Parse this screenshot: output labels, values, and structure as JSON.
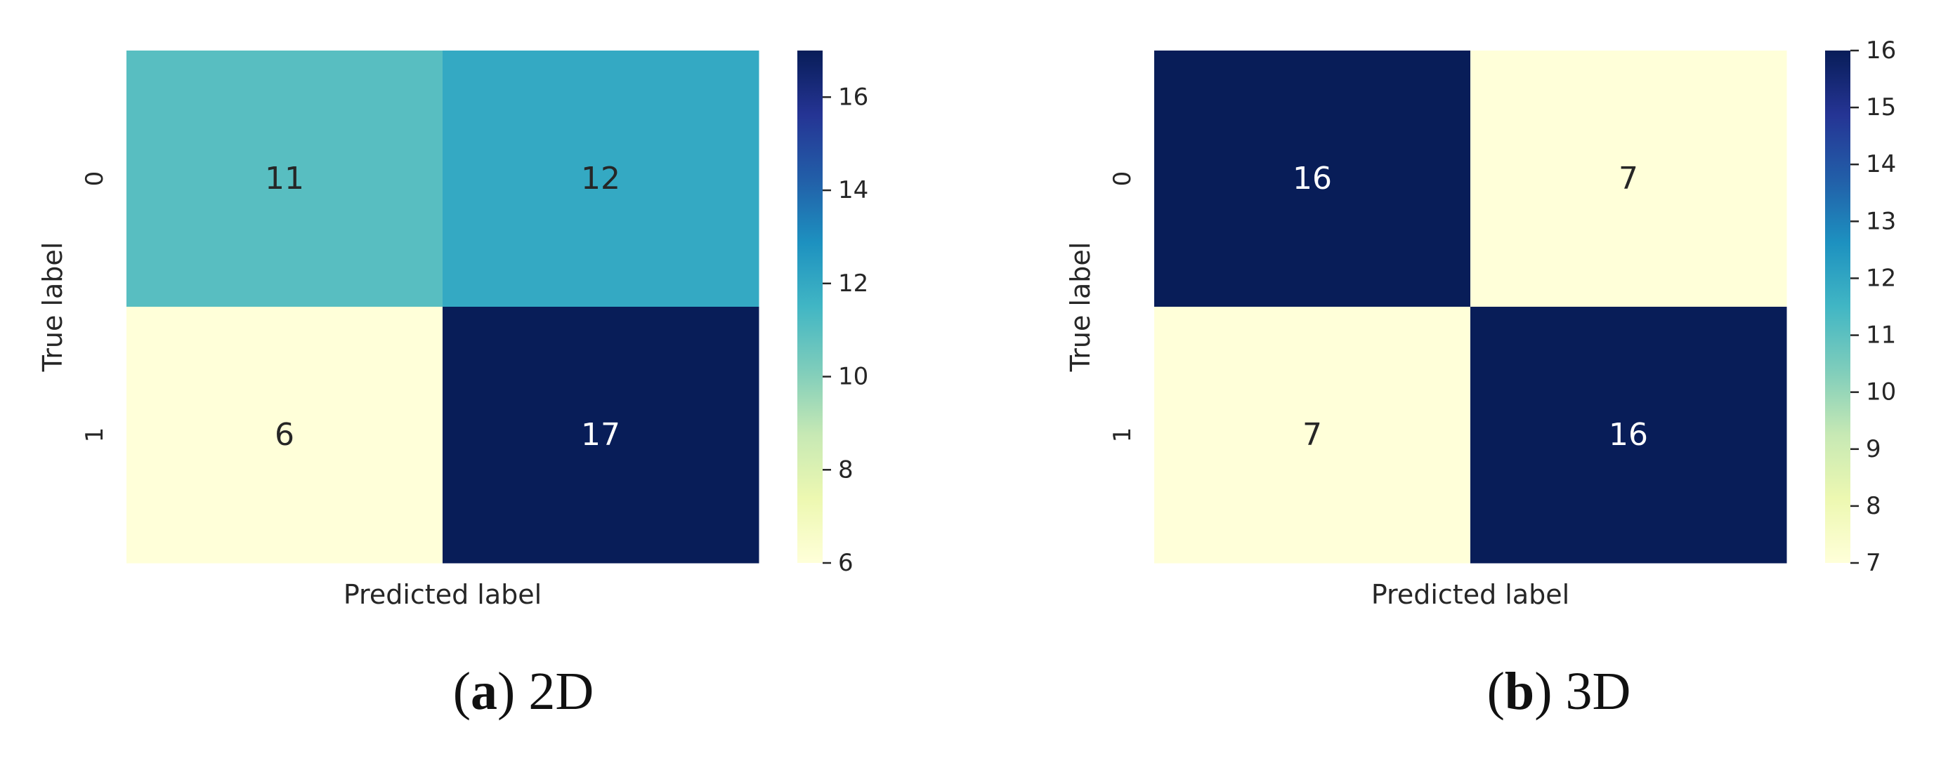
{
  "figure": {
    "captions": [
      {
        "open": "(",
        "letter": "a",
        "close": ")",
        "text": " 2D"
      },
      {
        "open": "(",
        "letter": "b",
        "close": ")",
        "text": " 3D"
      }
    ]
  },
  "chart_data": [
    {
      "type": "heatmap",
      "title": "",
      "xlabel": "Predicted label",
      "ylabel": "True label",
      "x_categories": [],
      "y_categories": [
        "0",
        "1"
      ],
      "values": [
        [
          11,
          12
        ],
        [
          6,
          17
        ]
      ],
      "colormap": "YlGnBu",
      "colorbar": {
        "range": [
          6,
          17
        ],
        "ticks": [
          6,
          8,
          10,
          12,
          14,
          16
        ]
      },
      "text_colors": {
        "light": "#ffffff",
        "dark": "#262626"
      }
    },
    {
      "type": "heatmap",
      "title": "",
      "xlabel": "Predicted label",
      "ylabel": "True label",
      "x_categories": [],
      "y_categories": [
        "0",
        "1"
      ],
      "values": [
        [
          16,
          7
        ],
        [
          7,
          16
        ]
      ],
      "colormap": "YlGnBu",
      "colorbar": {
        "range": [
          7,
          16
        ],
        "ticks": [
          7,
          8,
          9,
          10,
          11,
          12,
          13,
          14,
          15,
          16
        ]
      },
      "text_colors": {
        "light": "#ffffff",
        "dark": "#262626"
      }
    }
  ]
}
